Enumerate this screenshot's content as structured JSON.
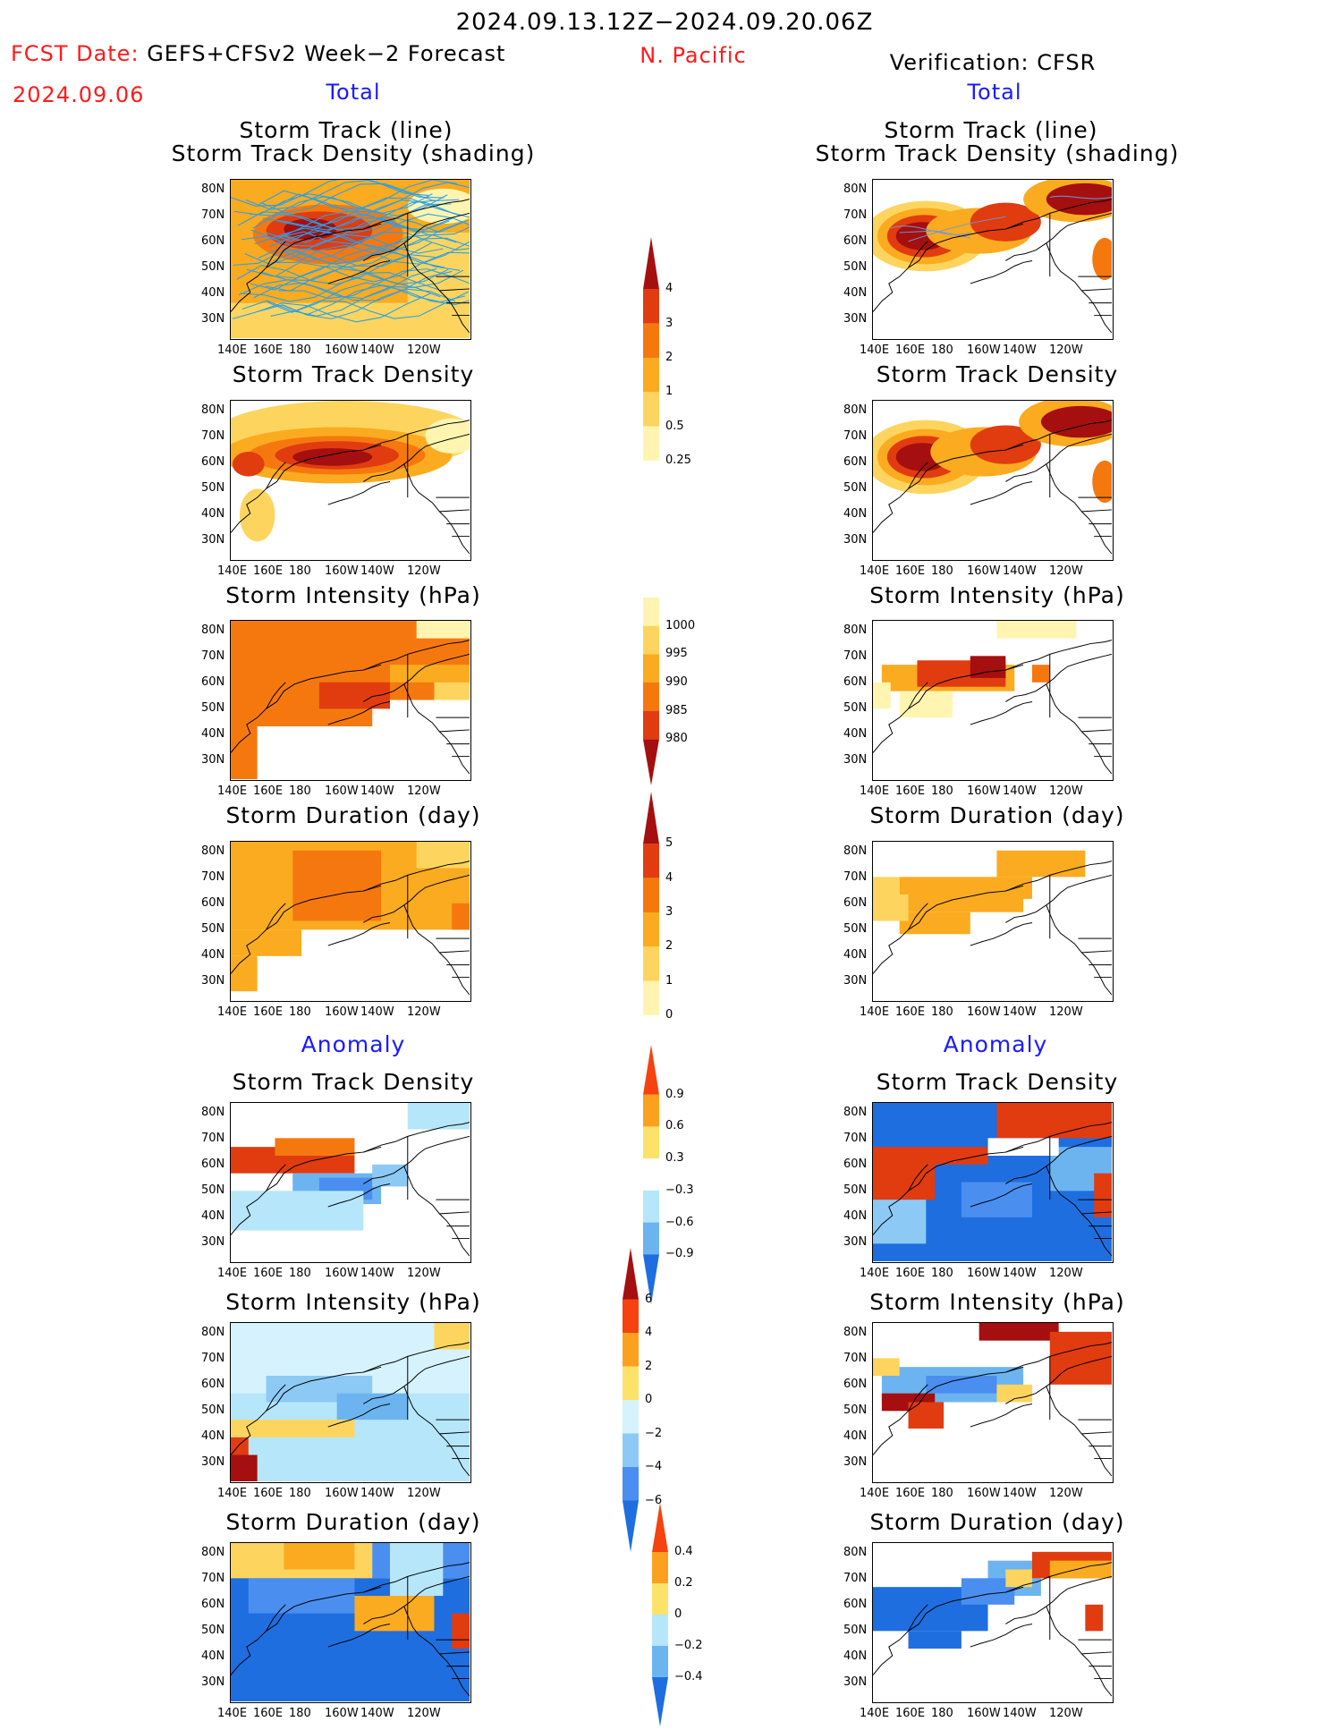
{
  "header": {
    "valid_period": "2024.09.13.12Z−2024.09.20.06Z",
    "fcst_label": "FCST Date:",
    "fcst_date": "2024.09.06",
    "forecast_system": "GEFS+CFSv2 Week−2 Forecast",
    "region": "N. Pacific",
    "verification": "Verification: CFSR",
    "left_total": "Total",
    "right_total": "Total"
  },
  "sections": {
    "left_anomaly": "Anomaly",
    "right_anomaly": "Anomaly"
  },
  "panels": {
    "track_line_l1": "Storm Track (line)",
    "track_line_l2": "Storm Track Density (shading)",
    "density": "Storm Track Density",
    "intensity": "Storm Intensity (hPa)",
    "duration": "Storm Duration (day)"
  },
  "axes": {
    "lon_ticks": [
      "140E",
      "160E",
      "180",
      "160W",
      "140W",
      "120W"
    ],
    "lat_ticks": [
      "80N",
      "70N",
      "60N",
      "50N",
      "40N",
      "30N"
    ]
  },
  "colorbars": {
    "density_total": {
      "labels": [
        "4",
        "3",
        "2",
        "1",
        "0.5",
        "0.25"
      ],
      "colors": [
        "#a50f0f",
        "#e03c10",
        "#f5780f",
        "#fbab1f",
        "#fdd55e",
        "#fff5b0"
      ]
    },
    "intensity_total": {
      "labels": [
        "1000",
        "995",
        "990",
        "985",
        "980"
      ],
      "colors": [
        "#fff5b0",
        "#fdd55e",
        "#fbab1f",
        "#f5780f",
        "#e03c10",
        "#a50f0f"
      ]
    },
    "duration_total": {
      "labels": [
        "5",
        "4",
        "3",
        "2",
        "1",
        "0"
      ],
      "colors": [
        "#a50f0f",
        "#e03c10",
        "#f5780f",
        "#fbab1f",
        "#fdd55e",
        "#fff5b0"
      ]
    },
    "density_anom": {
      "labels": [
        "0.9",
        "0.6",
        "0.3",
        "−0.3",
        "−0.6",
        "−0.9"
      ],
      "colors": [
        "#f5420f",
        "#fba11f",
        "#fde26a",
        "#ffffff",
        "#b6e6fa",
        "#6cb4f0",
        "#1e6ee0"
      ]
    },
    "intensity_anom": {
      "labels": [
        "6",
        "4",
        "2",
        "0",
        "−2",
        "−4",
        "−6"
      ],
      "colors": [
        "#a50f0f",
        "#f5420f",
        "#fba11f",
        "#fde26a",
        "#d6f2fc",
        "#8ccaf5",
        "#4a8ef0",
        "#1e6ee0"
      ]
    },
    "duration_anom": {
      "labels": [
        "0.4",
        "0.2",
        "0",
        "−0.2",
        "−0.4"
      ],
      "colors": [
        "#f5420f",
        "#fba11f",
        "#fde26a",
        "#b6e6fa",
        "#6cb4f0",
        "#1e6ee0"
      ]
    }
  }
}
